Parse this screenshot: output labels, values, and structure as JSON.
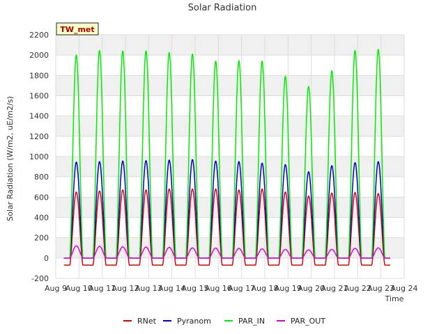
{
  "chart_data": {
    "type": "line",
    "title": "Solar Radiation",
    "xlabel": "Time",
    "ylabel": "Solar Radiation (W/m2, uE/m2/s)",
    "badge": "TW_met",
    "ylim": [
      -200,
      2200
    ],
    "y_ticks": [
      -200,
      0,
      200,
      400,
      600,
      800,
      1000,
      1200,
      1400,
      1600,
      1800,
      2000,
      2200
    ],
    "xlim": [
      9,
      24
    ],
    "x_ticks": [
      {
        "v": 9,
        "label": "Aug 9"
      },
      {
        "v": 10,
        "label": "Aug 10"
      },
      {
        "v": 11,
        "label": "Aug 11"
      },
      {
        "v": 12,
        "label": "Aug 12"
      },
      {
        "v": 13,
        "label": "Aug 13"
      },
      {
        "v": 14,
        "label": "Aug 14"
      },
      {
        "v": 15,
        "label": "Aug 15"
      },
      {
        "v": 16,
        "label": "Aug 16"
      },
      {
        "v": 17,
        "label": "Aug 17"
      },
      {
        "v": 18,
        "label": "Aug 18"
      },
      {
        "v": 19,
        "label": "Aug 19"
      },
      {
        "v": 20,
        "label": "Aug 20"
      },
      {
        "v": 21,
        "label": "Aug 21"
      },
      {
        "v": 22,
        "label": "Aug 22"
      },
      {
        "v": 23,
        "label": "Aug 23"
      },
      {
        "v": 24,
        "label": "Aug 24"
      }
    ],
    "day_starts": [
      9.35,
      10.35,
      11.35,
      12.35,
      13.35,
      14.35,
      15.35,
      16.35,
      17.35,
      18.35,
      19.35,
      20.35,
      21.35,
      22.35
    ],
    "data_start": 9.35,
    "data_end": 23.4,
    "daylight_fraction": [
      0.25,
      0.82
    ],
    "series": [
      {
        "name": "RNet",
        "color": "#dd0000",
        "night": -70,
        "peaks": [
          650,
          660,
          670,
          670,
          680,
          680,
          680,
          670,
          680,
          650,
          610,
          640,
          645,
          635
        ]
      },
      {
        "name": "Pyranom",
        "color": "#0000cc",
        "night": 0,
        "peaks": [
          945,
          950,
          955,
          960,
          965,
          970,
          955,
          950,
          935,
          920,
          850,
          910,
          940,
          950
        ]
      },
      {
        "name": "PAR_IN",
        "color": "#00ee00",
        "night": 0,
        "peaks": [
          2000,
          2045,
          2040,
          2040,
          2025,
          2010,
          1940,
          1945,
          1940,
          1790,
          1690,
          1845,
          2045,
          2055
        ]
      },
      {
        "name": "PAR_OUT",
        "color": "#dd00dd",
        "night": 0,
        "peaks": [
          120,
          115,
          110,
          108,
          105,
          100,
          98,
          95,
          90,
          85,
          80,
          85,
          95,
          100
        ]
      }
    ]
  }
}
